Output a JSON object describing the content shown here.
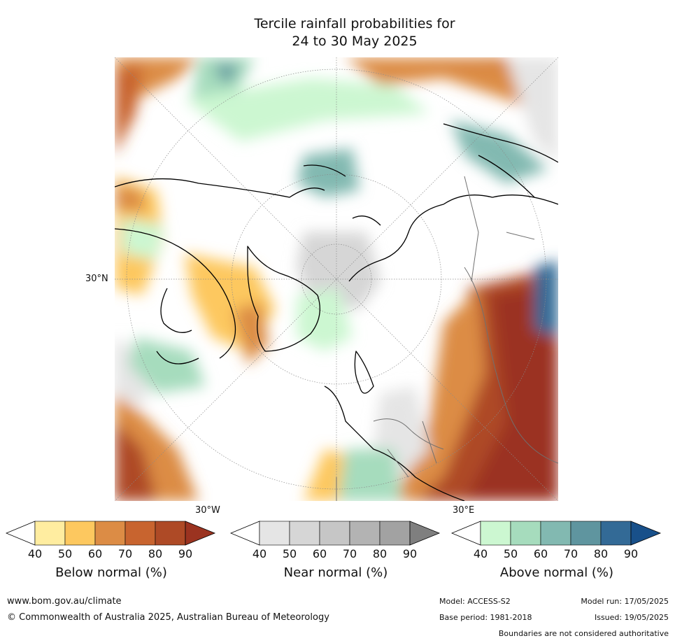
{
  "title": {
    "line1": "Tercile rainfall probabilities for",
    "line2": "24 to 30 May 2025"
  },
  "map": {
    "lat_label": "30°N",
    "lon_label_w": "30°W",
    "lon_label_e": "30°E",
    "colors": {
      "below": [
        "#ffeda0",
        "#fdc85f",
        "#dc8c45",
        "#c8642f",
        "#ae4a26",
        "#9b3320"
      ],
      "near": [
        "#e5e5e5",
        "#d6d6d6",
        "#c6c6c6",
        "#b3b3b3",
        "#a2a2a2",
        "#7f7f7f"
      ],
      "above": [
        "#ccf7d1",
        "#a6dcbd",
        "#82b9b1",
        "#5f959f",
        "#336a96",
        "#18508a"
      ]
    }
  },
  "colorbars": [
    {
      "title": "Below normal (%)",
      "ticks": [
        "40",
        "50",
        "60",
        "70",
        "80",
        "90"
      ],
      "colors": [
        "#ffeda0",
        "#fdc85f",
        "#dc8c45",
        "#c8642f",
        "#ae4a26",
        "#9b3320"
      ]
    },
    {
      "title": "Near normal (%)",
      "ticks": [
        "40",
        "50",
        "60",
        "70",
        "80",
        "90"
      ],
      "colors": [
        "#e5e5e5",
        "#d6d6d6",
        "#c6c6c6",
        "#b3b3b3",
        "#a2a2a2",
        "#7f7f7f"
      ]
    },
    {
      "title": "Above normal (%)",
      "ticks": [
        "40",
        "50",
        "60",
        "70",
        "80",
        "90"
      ],
      "colors": [
        "#ccf7d1",
        "#a6dcbd",
        "#82b9b1",
        "#5f959f",
        "#336a96",
        "#18508a"
      ]
    }
  ],
  "footer": {
    "website": "www.bom.gov.au/climate",
    "copyright": "© Commonwealth of Australia 2025, Australian Bureau of Meteorology",
    "model": "Model: ACCESS-S2",
    "base_period": "Base period: 1981-2018",
    "model_run": "Model run: 17/05/2025",
    "issued": "Issued: 19/05/2025",
    "disclaimer": "Boundaries are not considered authoritative"
  }
}
